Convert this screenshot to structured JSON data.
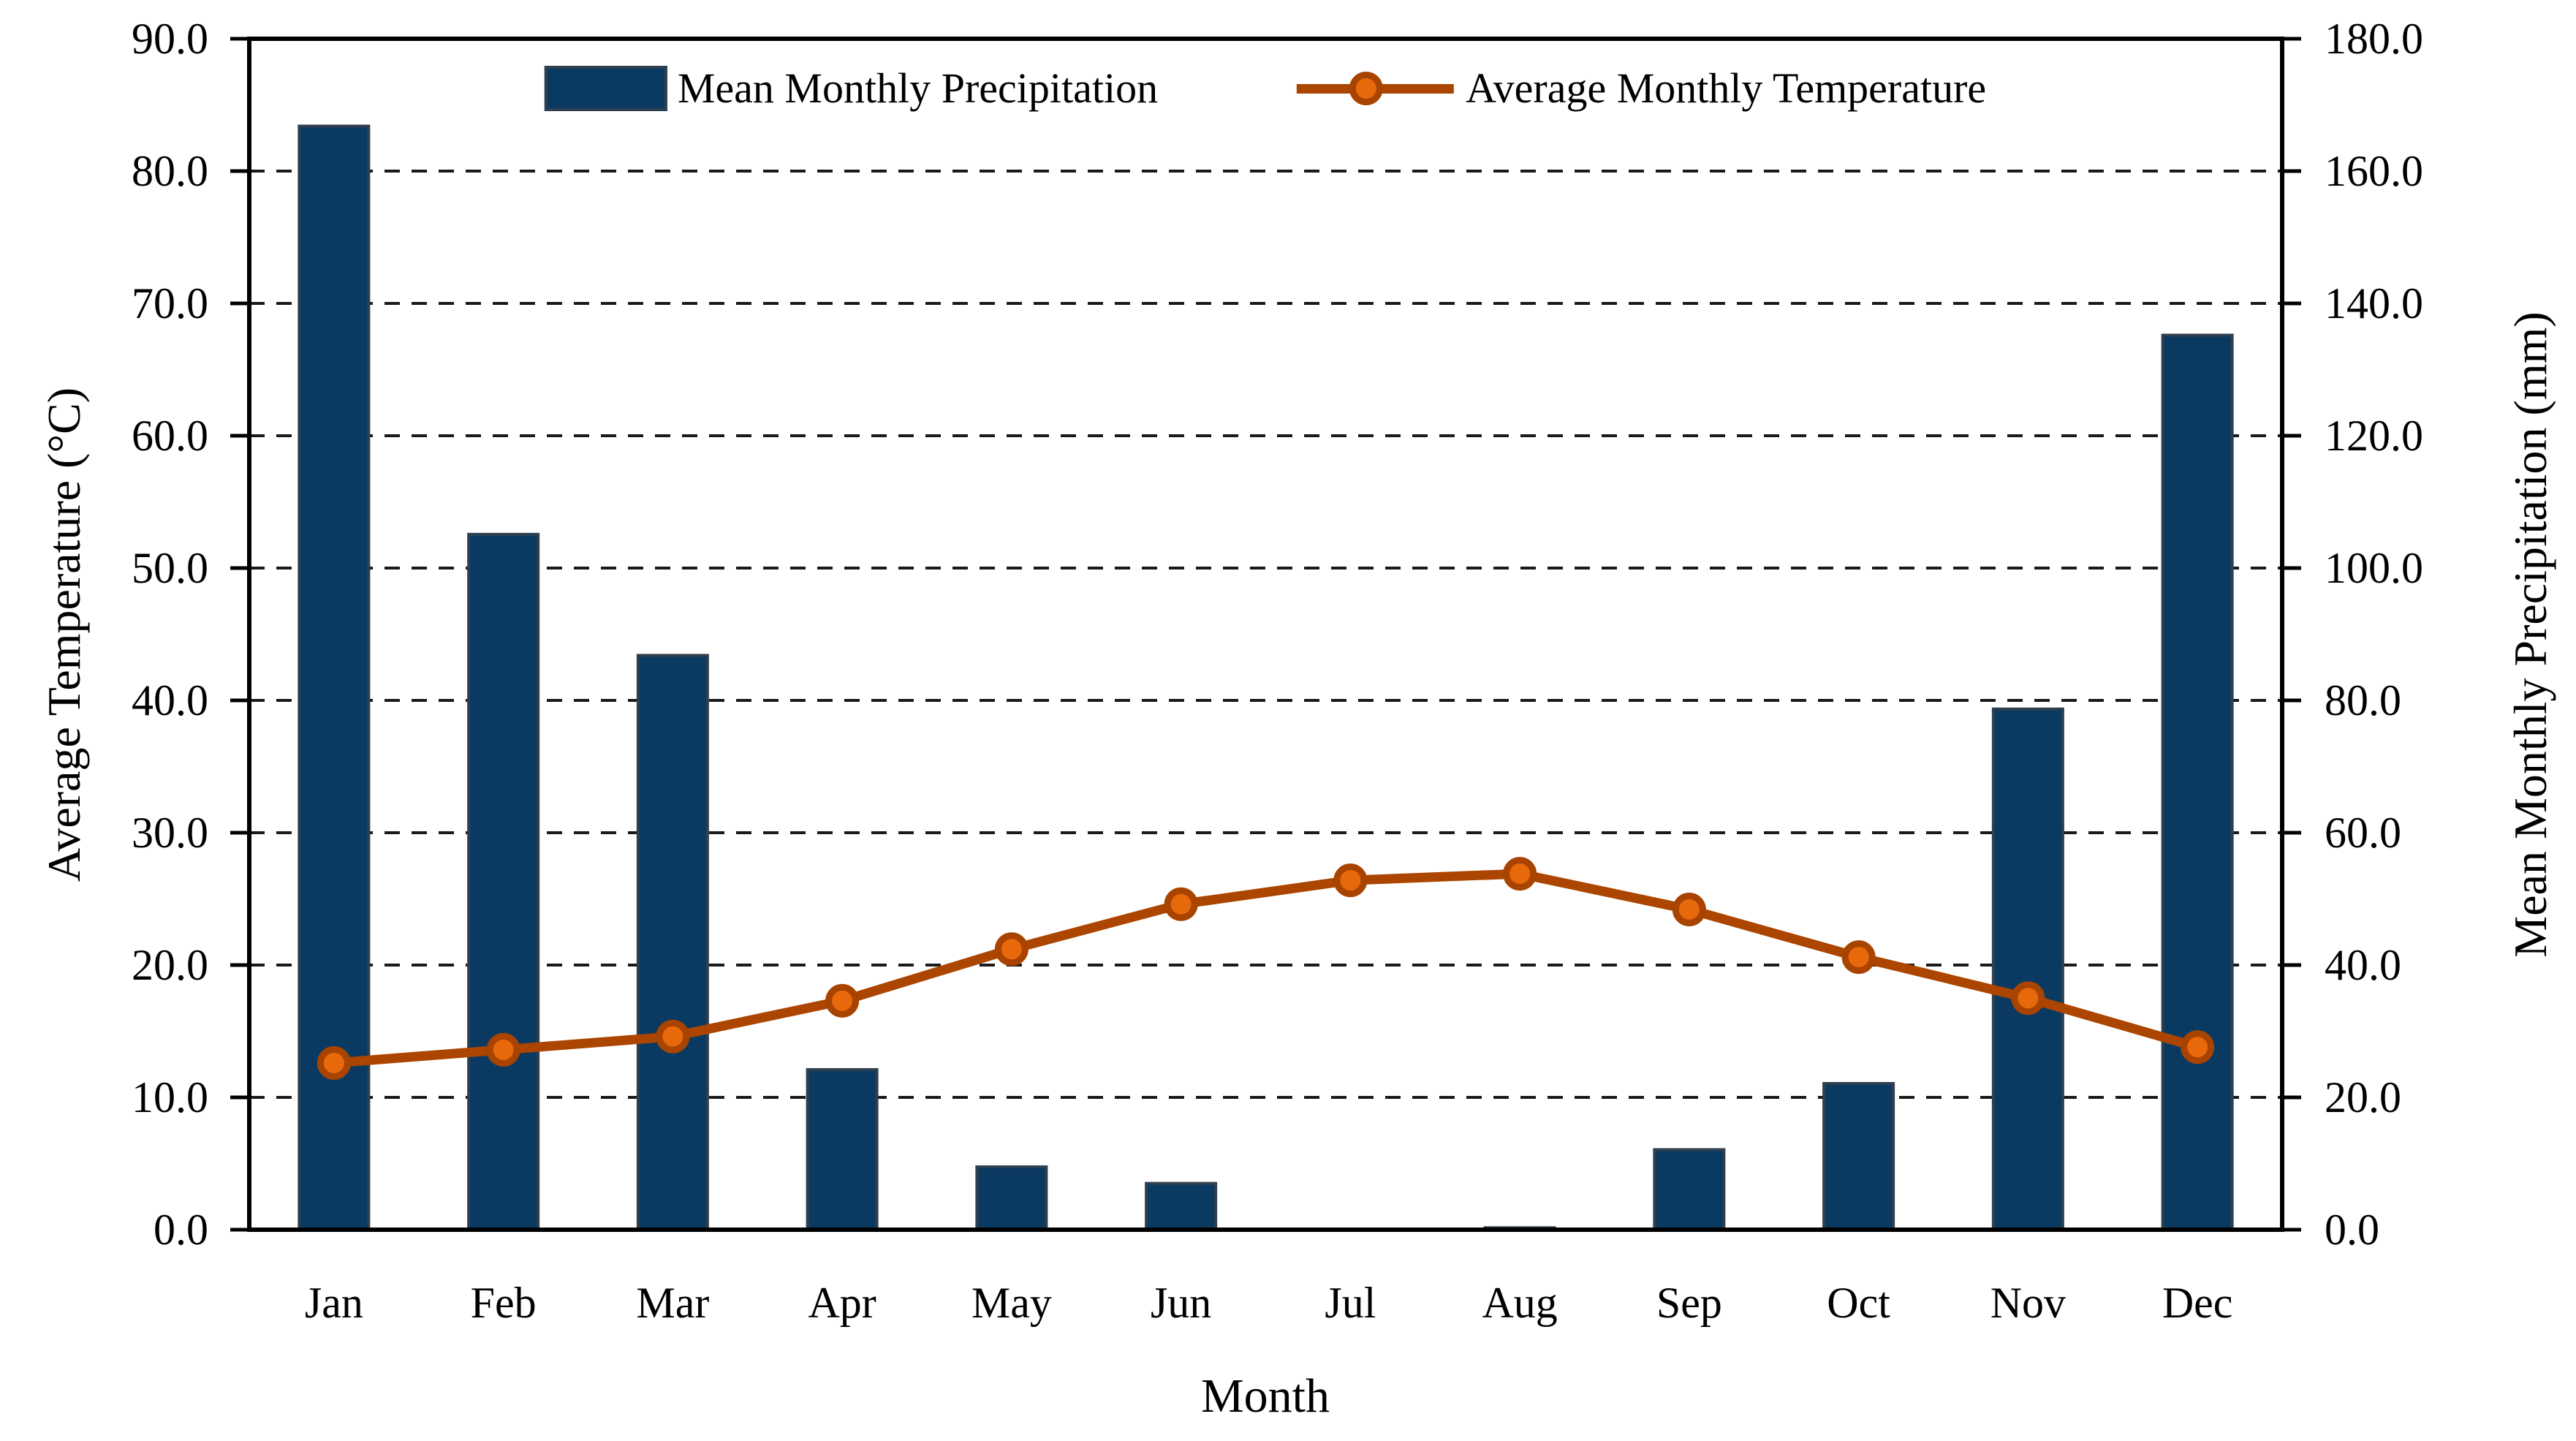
{
  "chart_data": {
    "type": "bar+line combo (climate chart)",
    "categories": [
      "Jan",
      "Feb",
      "Mar",
      "Apr",
      "May",
      "Jun",
      "Jul",
      "Aug",
      "Sep",
      "Oct",
      "Nov",
      "Dec"
    ],
    "series": [
      {
        "name": "Mean Monthly Precipitation",
        "axis": "right",
        "unit": "mm",
        "style": "bar",
        "values": [
          166.8,
          105.1,
          86.8,
          24.2,
          9.5,
          7.0,
          0.0,
          0.3,
          12.1,
          22.1,
          78.7,
          135.2
        ]
      },
      {
        "name": "Average Monthly Temperature",
        "axis": "left",
        "unit": "°C",
        "style": "line-with-circle-markers",
        "values": [
          12.6,
          13.6,
          14.6,
          17.3,
          21.2,
          24.6,
          26.4,
          26.9,
          24.2,
          20.6,
          17.5,
          13.8
        ]
      }
    ],
    "xlabel": "Month",
    "ylabel_left": "Average Temperature (°C)",
    "ylabel_right": "Mean Monthly Precipitation (mm)",
    "left_axis": {
      "min": 0,
      "max": 90,
      "step": 10,
      "tick_labels": [
        "0.0",
        "10.0",
        "20.0",
        "30.0",
        "40.0",
        "50.0",
        "60.0",
        "70.0",
        "80.0",
        "90.0"
      ]
    },
    "right_axis": {
      "min": 0,
      "max": 180,
      "step": 20,
      "tick_labels": [
        "0.0",
        "20.0",
        "40.0",
        "60.0",
        "80.0",
        "100.0",
        "120.0",
        "140.0",
        "160.0",
        "180.0"
      ]
    },
    "grid": "horizontal dashed gridlines at every 10 (left-axis units), plot framed with solid black border",
    "legend_position": "top inside plot area, horizontal"
  },
  "legend": {
    "precip_label": "Mean Monthly Precipitation",
    "temp_label": "Average Monthly Temperature"
  },
  "titles": {
    "x_axis": "Month",
    "y_left": "Average Temperature (°C)",
    "y_right": "Mean Monthly Precipitation (mm)"
  },
  "colors": {
    "bar_fill": "#0a3a62",
    "bar_border": "#2e3f4e",
    "line": "#ac4500",
    "marker_fill": "#e8690b",
    "marker_ring": "#a84300",
    "axis": "#000000"
  }
}
